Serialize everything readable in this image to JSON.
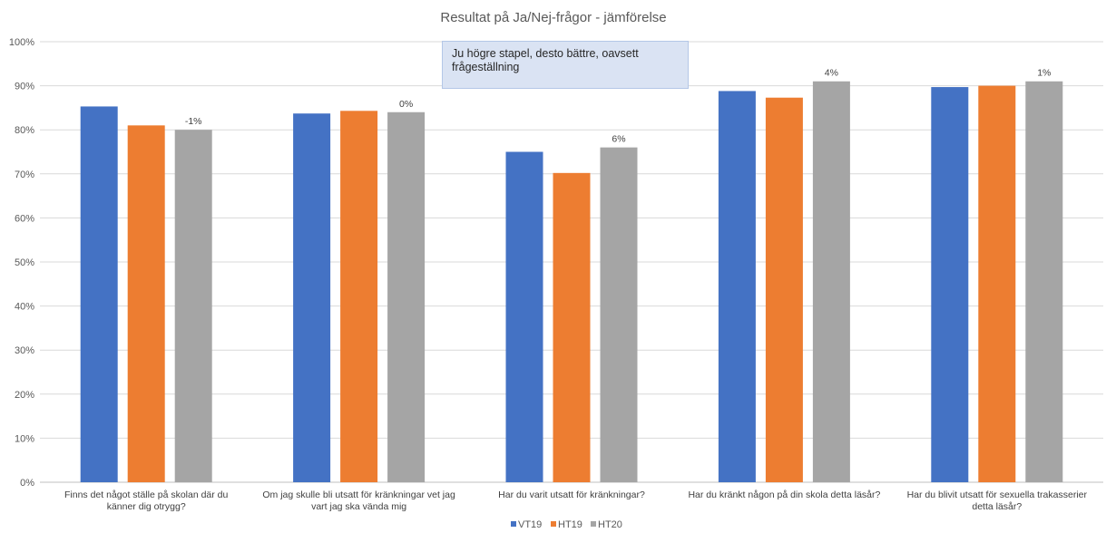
{
  "chart_data": {
    "type": "bar",
    "title": "Resultat på Ja/Nej-frågor - jämförelse",
    "categories": [
      [
        "Finns det något ställe på skolan där du",
        "känner dig otrygg?"
      ],
      [
        "Om jag skulle bli utsatt för kränkningar vet jag",
        "vart jag ska vända mig"
      ],
      [
        "Har du varit utsatt för kränkningar?"
      ],
      [
        "Har du kränkt någon på din skola detta läsår?"
      ],
      [
        "Har du blivit utsatt för sexuella trakasserier",
        "detta läsår?"
      ]
    ],
    "series": [
      {
        "name": "VT19",
        "color": "#4472c4",
        "values": [
          85.3,
          83.7,
          75.0,
          88.8,
          89.7
        ]
      },
      {
        "name": "HT19",
        "color": "#ed7d31",
        "values": [
          81.0,
          84.3,
          70.2,
          87.3,
          90.0
        ]
      },
      {
        "name": "HT20",
        "color": "#a5a5a5",
        "values": [
          80.0,
          84.0,
          76.0,
          91.0,
          91.0
        ]
      }
    ],
    "data_labels": {
      "series": "HT20",
      "labels": [
        "-1%",
        "0%",
        "6%",
        "4%",
        "1%"
      ]
    },
    "ylim": [
      0,
      100
    ],
    "yticks": [
      "0%",
      "10%",
      "20%",
      "30%",
      "40%",
      "50%",
      "60%",
      "70%",
      "80%",
      "90%",
      "100%"
    ],
    "grid": true,
    "legend": "bottom-center",
    "annotation": "Ju högre stapel, desto bättre, oavsett frågeställning"
  }
}
